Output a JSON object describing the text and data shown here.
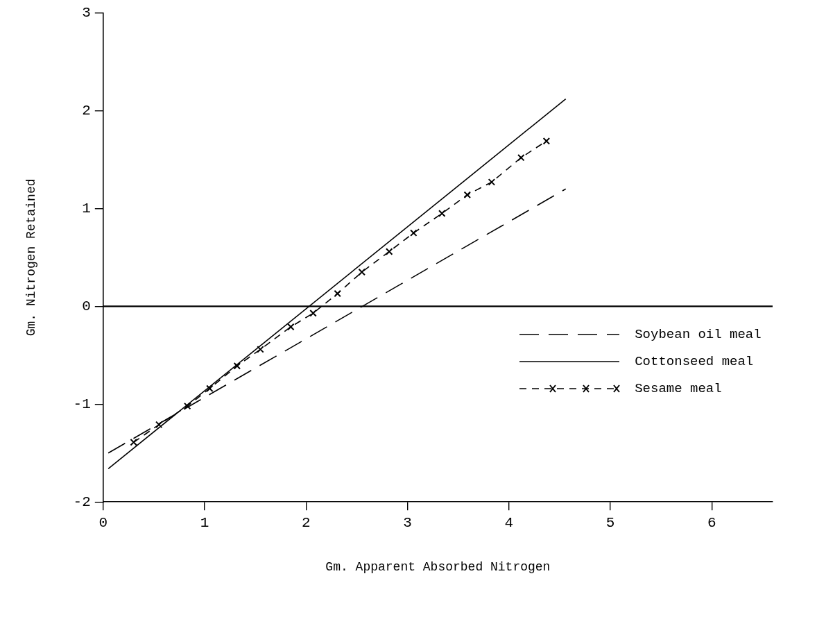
{
  "chart_data": {
    "type": "line",
    "xlabel": "Gm. Apparent Absorbed Nitrogen",
    "ylabel": "Gm. Nitrogen Retained",
    "xlim": [
      0,
      6.6
    ],
    "xticks": [
      0,
      1,
      2,
      3,
      4,
      5,
      6
    ],
    "ylim": [
      -2,
      3
    ],
    "yticks": [
      -2,
      -1,
      0,
      1,
      2,
      3
    ],
    "grid": false,
    "legend": "right",
    "ref_lines": [
      {
        "axis": "y",
        "value": 0,
        "color": "#000000"
      }
    ],
    "series": [
      {
        "name": "Soybean oil meal",
        "color": "#000000",
        "line_style": "dashed",
        "marker": "none",
        "x": [
          0.05,
          4.56
        ],
        "values": [
          -1.5,
          1.2
        ]
      },
      {
        "name": "Cottonseed meal",
        "color": "#000000",
        "line_style": "solid",
        "marker": "none",
        "x": [
          0.05,
          4.56
        ],
        "values": [
          -1.66,
          2.12
        ]
      },
      {
        "name": "Sesame meal",
        "color": "#000000",
        "line_style": "dashed",
        "marker": "cross",
        "x": [
          0.3,
          0.55,
          0.83,
          1.05,
          1.32,
          1.55,
          1.85,
          2.07,
          2.31,
          2.55,
          2.82,
          3.06,
          3.34,
          3.59,
          3.83,
          4.12,
          4.37
        ],
        "values": [
          -1.39,
          -1.21,
          -1.02,
          -0.84,
          -0.61,
          -0.44,
          -0.21,
          -0.07,
          0.13,
          0.35,
          0.56,
          0.75,
          0.95,
          1.14,
          1.27,
          1.52,
          1.69
        ]
      }
    ]
  }
}
